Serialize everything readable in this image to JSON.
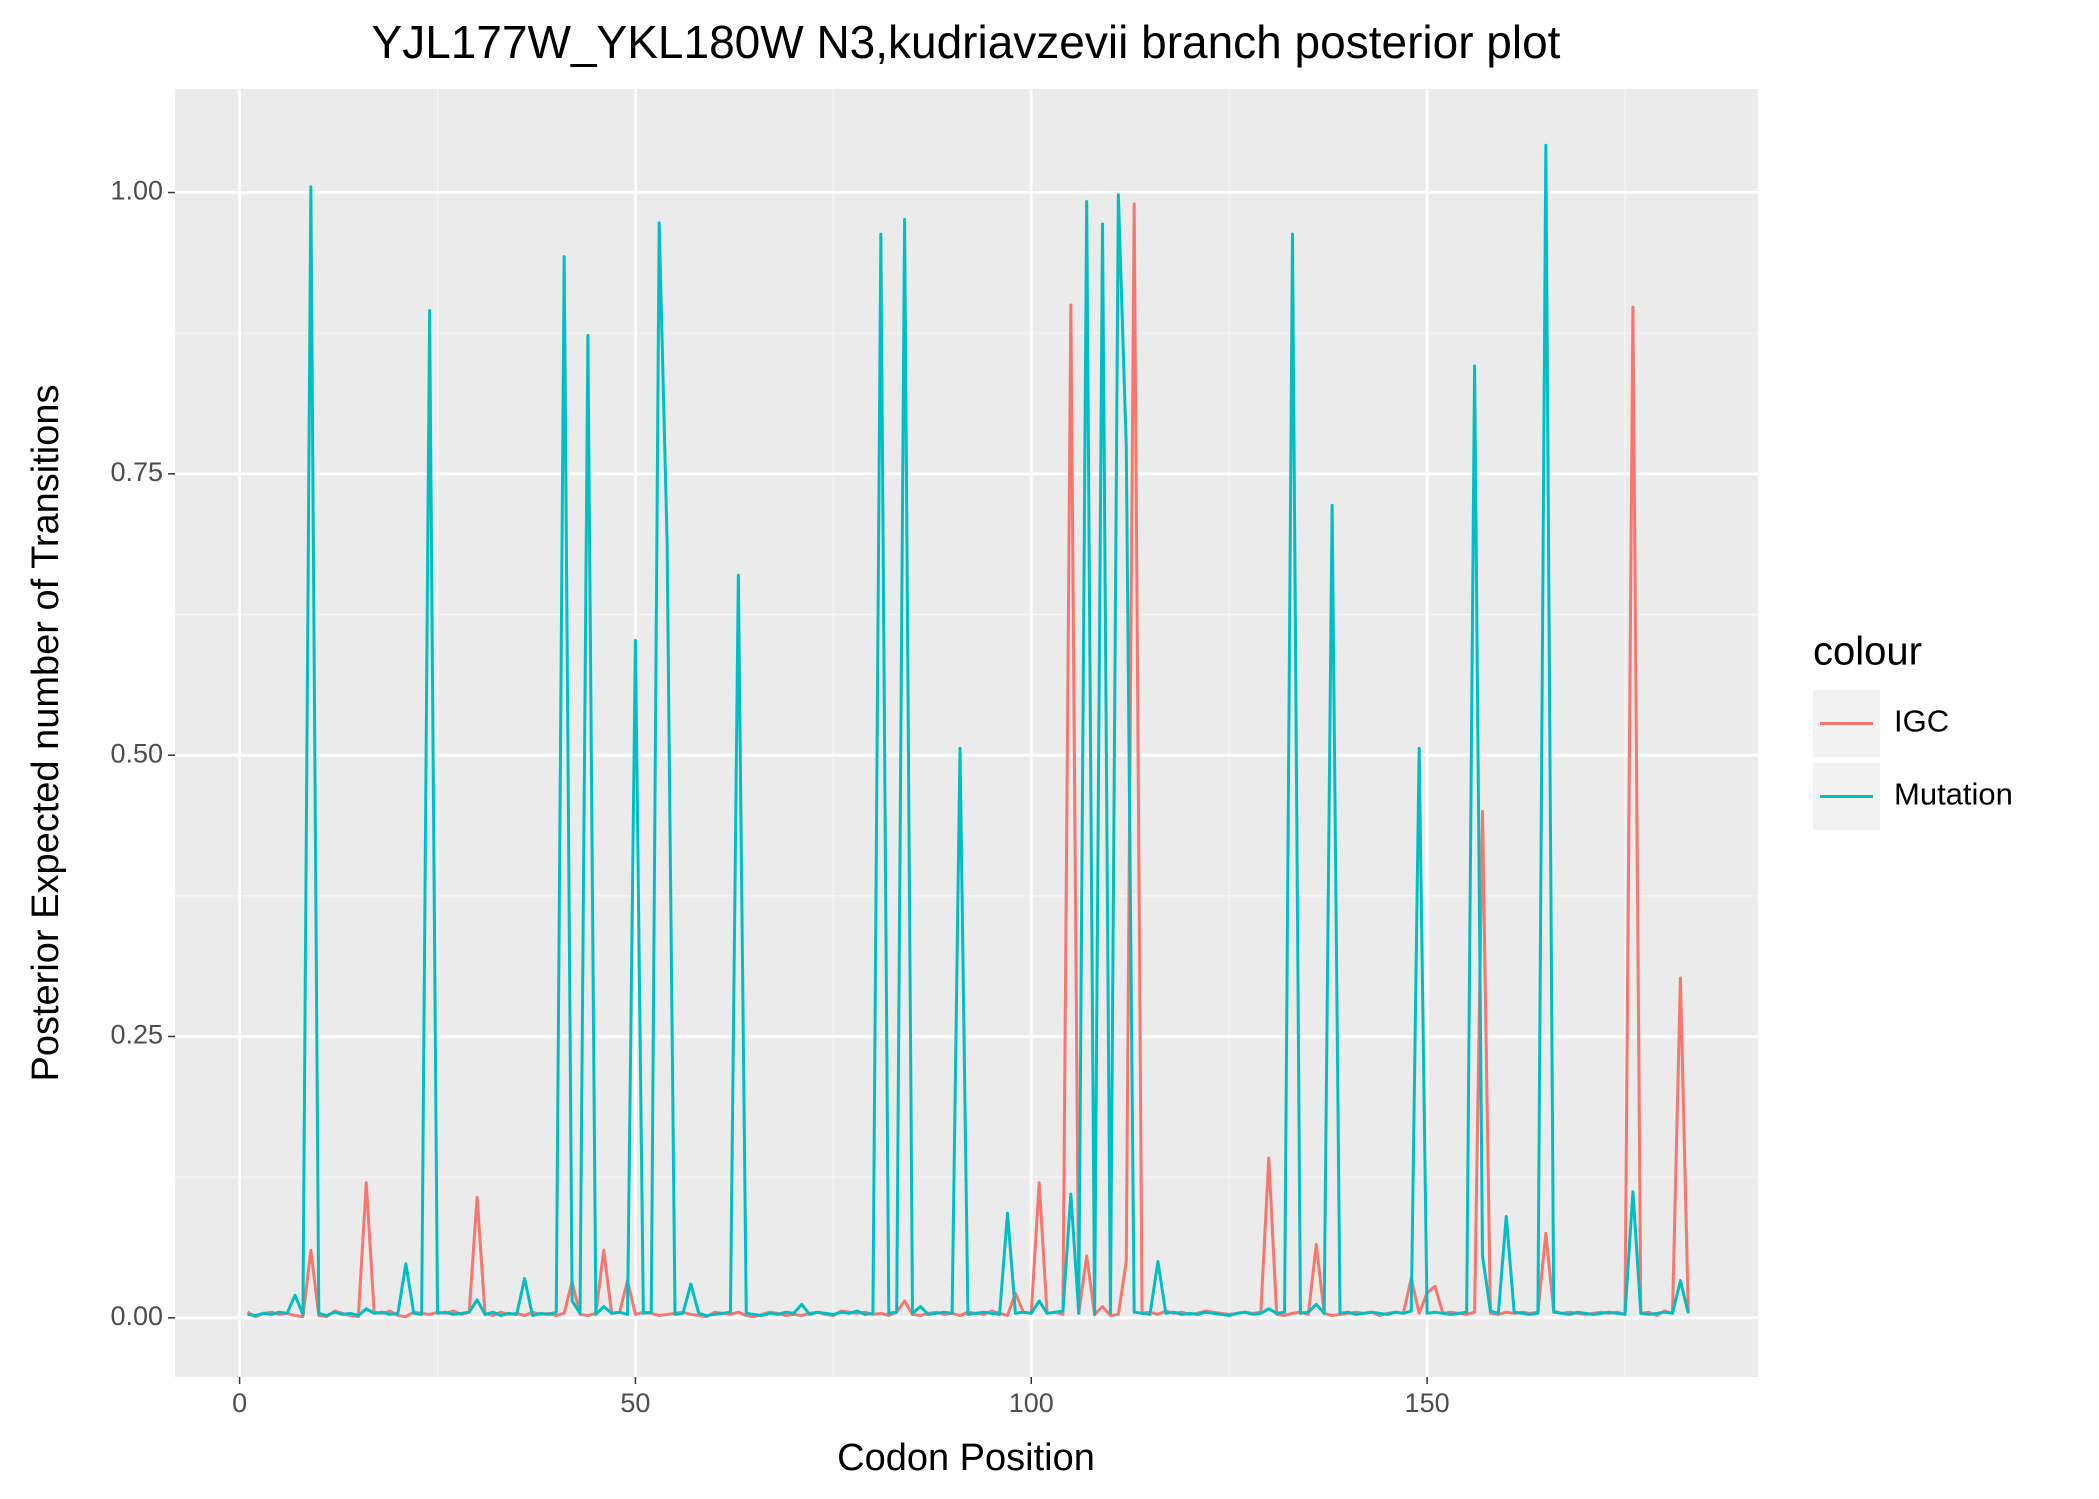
{
  "chart_data": {
    "type": "line",
    "title": "YJL177W_YKL180W N3,kudriavzevii branch posterior plot",
    "x_label": "Codon Position",
    "y_label": "Posterior Expected number of Transitions",
    "legend_title": "colour",
    "legend": "right",
    "grid": true,
    "xlim": [
      -8.16,
      191.8
    ],
    "ylim": [
      -0.0526,
      1.092
    ],
    "xticks": [
      0,
      50,
      100,
      150
    ],
    "yticks": [
      {
        "value": 0,
        "label": "0.00"
      },
      {
        "value": 0.25,
        "label": "0.25"
      },
      {
        "value": 0.5,
        "label": "0.50"
      },
      {
        "value": 0.75,
        "label": "0.75"
      },
      {
        "value": 1,
        "label": "1.00"
      }
    ],
    "x": [
      1,
      2,
      3,
      4,
      5,
      6,
      7,
      8,
      9,
      10,
      11,
      12,
      13,
      14,
      15,
      16,
      17,
      18,
      19,
      20,
      21,
      22,
      23,
      24,
      25,
      26,
      27,
      28,
      29,
      30,
      31,
      32,
      33,
      34,
      35,
      36,
      37,
      38,
      39,
      40,
      41,
      42,
      43,
      44,
      45,
      46,
      47,
      48,
      49,
      50,
      51,
      52,
      53,
      54,
      55,
      56,
      57,
      58,
      59,
      60,
      61,
      62,
      63,
      64,
      65,
      66,
      67,
      68,
      69,
      70,
      71,
      72,
      73,
      74,
      75,
      76,
      77,
      78,
      79,
      80,
      81,
      82,
      83,
      84,
      85,
      86,
      87,
      88,
      89,
      90,
      91,
      92,
      93,
      94,
      95,
      96,
      97,
      98,
      99,
      100,
      101,
      102,
      103,
      104,
      105,
      106,
      107,
      108,
      109,
      110,
      111,
      112,
      113,
      114,
      115,
      116,
      117,
      118,
      119,
      120,
      121,
      122,
      123,
      124,
      125,
      126,
      127,
      128,
      129,
      130,
      131,
      132,
      133,
      134,
      135,
      136,
      137,
      138,
      139,
      140,
      141,
      142,
      143,
      144,
      145,
      146,
      147,
      148,
      149,
      150,
      151,
      152,
      153,
      154,
      155,
      156,
      157,
      158,
      159,
      160,
      161,
      162,
      163,
      164,
      165,
      166,
      167,
      168,
      169,
      170,
      171,
      172,
      173,
      174,
      175,
      176,
      177,
      178,
      179,
      180,
      181,
      182,
      183
    ],
    "series": [
      {
        "name": "IGC",
        "color": "#f8766d",
        "values": [
          0.005,
          0.001,
          0.004,
          0.005,
          0.003,
          0.004,
          0.002,
          0.001,
          0.06,
          0.002,
          0.001,
          0.006,
          0.004,
          0.002,
          0.001,
          0.12,
          0.005,
          0.004,
          0.006,
          0.002,
          0.001,
          0.005,
          0.004,
          0.003,
          0.005,
          0.004,
          0.006,
          0.003,
          0.005,
          0.107,
          0.004,
          0.002,
          0.005,
          0.003,
          0.004,
          0.002,
          0.005,
          0.003,
          0.004,
          0.002,
          0.004,
          0.032,
          0.003,
          0.002,
          0.004,
          0.06,
          0.004,
          0.005,
          0.033,
          0.003,
          0.005,
          0.004,
          0.002,
          0.003,
          0.004,
          0.005,
          0.003,
          0.002,
          0.001,
          0.005,
          0.004,
          0.003,
          0.005,
          0.002,
          0.001,
          0.003,
          0.005,
          0.004,
          0.002,
          0.003,
          0.002,
          0.004,
          0.005,
          0.003,
          0.002,
          0.006,
          0.005,
          0.004,
          0.005,
          0.003,
          0.004,
          0.002,
          0.005,
          0.015,
          0.003,
          0.002,
          0.004,
          0.005,
          0.003,
          0.004,
          0.002,
          0.005,
          0.004,
          0.003,
          0.006,
          0.004,
          0.002,
          0.022,
          0.005,
          0.004,
          0.12,
          0.004,
          0.005,
          0.003,
          0.9,
          0.004,
          0.055,
          0.003,
          0.01,
          0.002,
          0.003,
          0.05,
          0.99,
          0.004,
          0.005,
          0.003,
          0.006,
          0.004,
          0.005,
          0.003,
          0.004,
          0.006,
          0.005,
          0.004,
          0.003,
          0.004,
          0.005,
          0.004,
          0.005,
          0.142,
          0.003,
          0.002,
          0.004,
          0.005,
          0.003,
          0.065,
          0.004,
          0.002,
          0.003,
          0.004,
          0.005,
          0.004,
          0.005,
          0.002,
          0.004,
          0.005,
          0.004,
          0.035,
          0.004,
          0.022,
          0.028,
          0.004,
          0.005,
          0.004,
          0.003,
          0.005,
          0.45,
          0.004,
          0.003,
          0.005,
          0.004,
          0.005,
          0.004,
          0.005,
          0.075,
          0.006,
          0.004,
          0.005,
          0.004,
          0.003,
          0.004,
          0.005,
          0.004,
          0.005,
          0.003,
          0.898,
          0.004,
          0.005,
          0.002,
          0.006,
          0.004,
          0.302,
          0.004
        ]
      },
      {
        "name": "Mutation",
        "color": "#00bfc4",
        "values": [
          0.003,
          0.002,
          0.004,
          0.003,
          0.005,
          0.004,
          0.02,
          0.003,
          1.005,
          0.004,
          0.002,
          0.005,
          0.003,
          0.004,
          0.002,
          0.008,
          0.004,
          0.005,
          0.003,
          0.004,
          0.048,
          0.004,
          0.003,
          0.895,
          0.004,
          0.005,
          0.003,
          0.004,
          0.005,
          0.016,
          0.003,
          0.005,
          0.002,
          0.004,
          0.003,
          0.035,
          0.002,
          0.004,
          0.003,
          0.005,
          0.943,
          0.015,
          0.004,
          0.873,
          0.003,
          0.01,
          0.004,
          0.005,
          0.003,
          0.602,
          0.004,
          0.005,
          0.973,
          0.69,
          0.003,
          0.004,
          0.03,
          0.004,
          0.002,
          0.003,
          0.004,
          0.005,
          0.66,
          0.004,
          0.003,
          0.002,
          0.004,
          0.003,
          0.005,
          0.004,
          0.012,
          0.003,
          0.005,
          0.004,
          0.003,
          0.005,
          0.004,
          0.006,
          0.003,
          0.004,
          0.963,
          0.004,
          0.005,
          0.976,
          0.004,
          0.01,
          0.003,
          0.004,
          0.005,
          0.004,
          0.506,
          0.003,
          0.004,
          0.005,
          0.004,
          0.003,
          0.093,
          0.004,
          0.005,
          0.004,
          0.015,
          0.004,
          0.005,
          0.006,
          0.11,
          0.004,
          0.992,
          0.003,
          0.972,
          0.004,
          0.998,
          0.775,
          0.005,
          0.004,
          0.003,
          0.05,
          0.004,
          0.005,
          0.003,
          0.004,
          0.003,
          0.005,
          0.004,
          0.003,
          0.002,
          0.004,
          0.005,
          0.003,
          0.004,
          0.008,
          0.004,
          0.005,
          0.963,
          0.004,
          0.005,
          0.012,
          0.004,
          0.722,
          0.004,
          0.005,
          0.003,
          0.004,
          0.005,
          0.004,
          0.003,
          0.005,
          0.004,
          0.006,
          0.506,
          0.004,
          0.005,
          0.004,
          0.003,
          0.004,
          0.005,
          0.846,
          0.055,
          0.006,
          0.004,
          0.09,
          0.005,
          0.004,
          0.003,
          0.004,
          1.042,
          0.005,
          0.004,
          0.003,
          0.005,
          0.004,
          0.003,
          0.004,
          0.005,
          0.004,
          0.003,
          0.112,
          0.004,
          0.003,
          0.004,
          0.005,
          0.004,
          0.033,
          0.004
        ]
      }
    ]
  }
}
